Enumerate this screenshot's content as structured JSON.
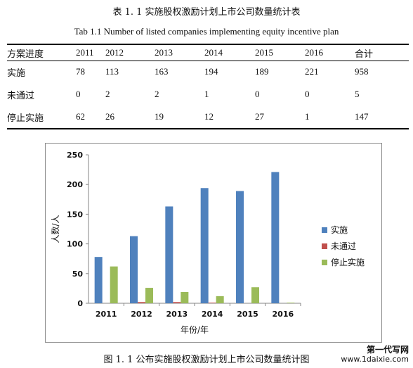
{
  "table_caption_cn": "表 1. 1  实施股权激励计划上市公司数量统计表",
  "table_caption_en": "Tab 1.1    Number of listed companies implementing equity incentive plan",
  "table": {
    "headers": [
      "方案进度",
      "2011",
      "2012",
      "2013",
      "2014",
      "2015",
      "2016",
      "合计"
    ],
    "rows": [
      [
        "实施",
        "78",
        "113",
        "163",
        "194",
        "189",
        "221",
        "958"
      ],
      [
        "未通过",
        "0",
        "2",
        "2",
        "1",
        "0",
        "0",
        "5"
      ],
      [
        "停止实施",
        "62",
        "26",
        "19",
        "12",
        "27",
        "1",
        "147"
      ]
    ]
  },
  "chart_data": {
    "type": "bar",
    "categories": [
      "2011",
      "2012",
      "2013",
      "2014",
      "2015",
      "2016"
    ],
    "series": [
      {
        "name": "实施",
        "values": [
          78,
          113,
          163,
          194,
          189,
          221
        ],
        "color": "#4f81bd"
      },
      {
        "name": "未通过",
        "values": [
          0,
          2,
          2,
          1,
          0,
          0
        ],
        "color": "#c0504d"
      },
      {
        "name": "停止实施",
        "values": [
          62,
          26,
          19,
          12,
          27,
          1
        ],
        "color": "#9bbb59"
      }
    ],
    "xlabel": "年份/年",
    "ylabel": "人数/人",
    "ylim": [
      0,
      250
    ],
    "yticks": [
      0,
      50,
      100,
      150,
      200,
      250
    ],
    "grid": false,
    "legend_position": "right"
  },
  "figure_caption": "图 1. 1   公布实施股权激励计划上市公司数量统计图",
  "watermark": {
    "line1": "第一代写网",
    "line2": "www.1daixie.com"
  }
}
